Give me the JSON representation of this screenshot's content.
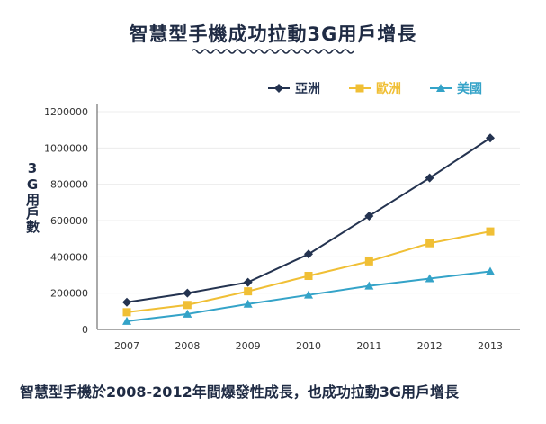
{
  "chart_data": {
    "type": "line",
    "title": "智慧型手機成功拉動3G用戶增長",
    "ylabel": "3G用戶數",
    "xlabel": "",
    "categories": [
      "2007",
      "2008",
      "2009",
      "2010",
      "2011",
      "2012",
      "2013"
    ],
    "ylim": [
      0,
      1200000
    ],
    "yticks": [
      "0",
      "200000",
      "400000",
      "600000",
      "800000",
      "1000000",
      "1200000"
    ],
    "grid": true,
    "legend": "top-right",
    "series": [
      {
        "name": "亞洲",
        "color": "#243350",
        "marker": "diamond",
        "values": [
          150000,
          200000,
          260000,
          415000,
          625000,
          835000,
          1055000
        ]
      },
      {
        "name": "歐洲",
        "color": "#f0bf35",
        "marker": "square",
        "values": [
          95000,
          135000,
          210000,
          295000,
          375000,
          475000,
          540000
        ]
      },
      {
        "name": "美國",
        "color": "#34a3c8",
        "marker": "triangle",
        "values": [
          45000,
          85000,
          140000,
          190000,
          240000,
          280000,
          320000
        ]
      }
    ]
  },
  "caption": "智慧型手機於2008-2012年間爆發性成長，也成功拉動3G用戶增長"
}
